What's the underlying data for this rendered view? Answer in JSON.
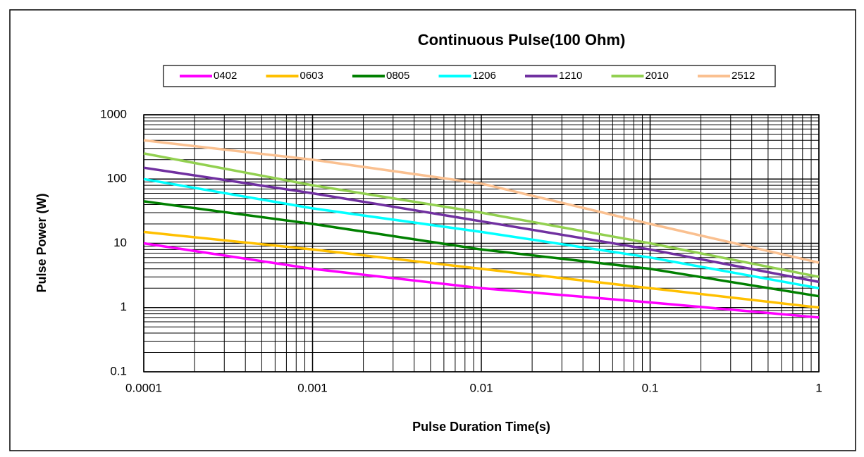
{
  "chart_data": {
    "type": "line",
    "title": "Continuous Pulse(100 Ohm)",
    "x_label": "Pulse Duration Time(s)",
    "y_label": "Pulse Power (W)",
    "log_x": true,
    "log_y": true,
    "grid": true,
    "minor_grid": true,
    "legend": "top",
    "xlim": [
      0.0001,
      1
    ],
    "xticks": [
      0.0001,
      0.001,
      0.01,
      0.1,
      1
    ],
    "ylim": [
      0.1,
      1000
    ],
    "yticks": [
      0.1,
      1,
      10,
      100,
      1000
    ],
    "x": [
      0.0001,
      0.001,
      0.01,
      0.1,
      1
    ],
    "series": [
      {
        "name": "0402",
        "color": "#ff00ff",
        "values": [
          10,
          4,
          2,
          1.2,
          0.7
        ]
      },
      {
        "name": "0603",
        "color": "#ffc000",
        "values": [
          15,
          8,
          4,
          2,
          1
        ]
      },
      {
        "name": "0805",
        "color": "#008000",
        "values": [
          45,
          20,
          8,
          4,
          1.5
        ]
      },
      {
        "name": "1206",
        "color": "#00ffff",
        "values": [
          100,
          35,
          15,
          6,
          2
        ]
      },
      {
        "name": "1210",
        "color": "#7030a0",
        "values": [
          150,
          60,
          22,
          8,
          2.5
        ]
      },
      {
        "name": "2010",
        "color": "#92d050",
        "values": [
          250,
          80,
          30,
          10,
          3
        ]
      },
      {
        "name": "2512",
        "color": "#fac090",
        "values": [
          400,
          200,
          85,
          20,
          5
        ]
      }
    ]
  }
}
